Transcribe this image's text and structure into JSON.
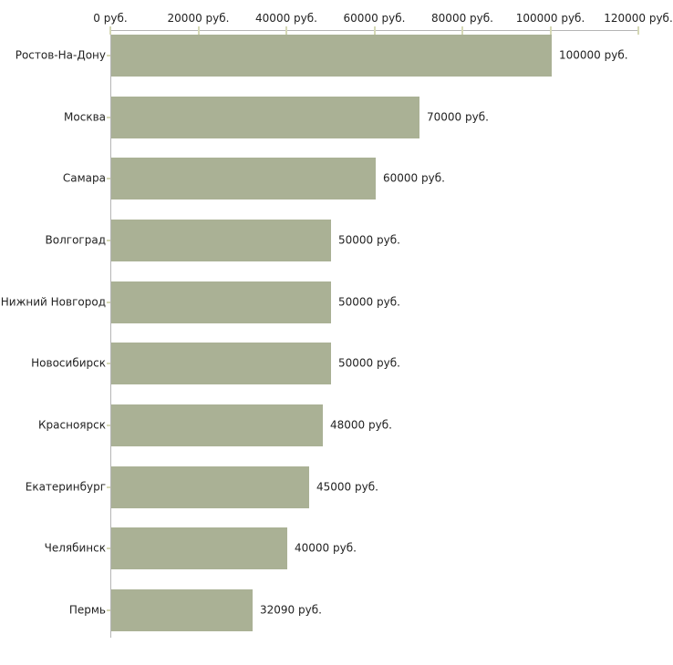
{
  "chart_data": {
    "type": "bar",
    "orientation": "horizontal",
    "title": "",
    "categories": [
      "Ростов-На-Дону",
      "Москва",
      "Самара",
      "Волгоград",
      "Нижний Новгород",
      "Новосибирск",
      "Красноярск",
      "Екатеринбург",
      "Челябинск",
      "Пермь"
    ],
    "values": [
      100000,
      70000,
      60000,
      50000,
      50000,
      50000,
      48000,
      45000,
      40000,
      32090
    ],
    "value_labels": [
      "100000 руб.",
      "70000 руб.",
      "60000 руб.",
      "50000 руб.",
      "50000 руб.",
      "50000 руб.",
      "48000 руб.",
      "45000 руб.",
      "40000 руб.",
      "32090 руб."
    ],
    "unit": "руб.",
    "x_axis": {
      "position": "top",
      "lim": [
        0,
        120000
      ],
      "ticks": [
        0,
        20000,
        40000,
        60000,
        80000,
        100000,
        120000
      ],
      "tick_labels": [
        "0 руб.",
        "20000 руб.",
        "40000 руб.",
        "60000 руб.",
        "80000 руб.",
        "100000 руб.",
        "120000 руб."
      ]
    },
    "grid": false,
    "legend": null,
    "colors": {
      "bar": "#aab195",
      "axis": "#b5b5b5",
      "tick": "#d5d8b5",
      "text": "#222222",
      "background": "#ffffff"
    }
  }
}
